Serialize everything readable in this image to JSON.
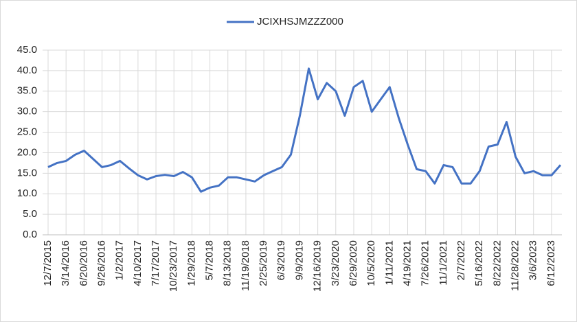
{
  "chart_data": {
    "type": "line",
    "categories": [
      "12/7/2015",
      null,
      "3/14/2016",
      null,
      "6/20/2016",
      null,
      "9/26/2016",
      null,
      "1/2/2017",
      null,
      "4/10/2017",
      null,
      "7/17/2017",
      null,
      "10/23/2017",
      null,
      "1/29/2018",
      null,
      "5/7/2018",
      null,
      "8/13/2018",
      null,
      "11/19/2018",
      null,
      "2/25/2019",
      null,
      "6/3/2019",
      null,
      "9/9/2019",
      null,
      "12/16/2019",
      null,
      "3/23/2020",
      null,
      "6/29/2020",
      null,
      "10/5/2020",
      null,
      "1/11/2021",
      null,
      "4/19/2021",
      null,
      "7/26/2021",
      null,
      "11/1/2021",
      null,
      "2/7/2022",
      null,
      "5/16/2022",
      null,
      "8/22/2022",
      null,
      "11/28/2022",
      null,
      "3/6/2023",
      null,
      "6/12/2023",
      null
    ],
    "series": [
      {
        "name": "JCIXHSJMZZZ000",
        "color": "#4472c4",
        "values": [
          16.5,
          17.5,
          18.0,
          19.5,
          20.5,
          18.5,
          16.5,
          17.0,
          18.0,
          16.2,
          14.5,
          13.5,
          14.3,
          14.6,
          14.3,
          15.3,
          14.0,
          10.5,
          11.5,
          12.0,
          14.0,
          14.0,
          13.5,
          13.0,
          14.5,
          15.5,
          16.5,
          19.5,
          29.0,
          40.5,
          33.0,
          37.0,
          35.0,
          29.0,
          36.0,
          37.5,
          30.0,
          33.0,
          36.0,
          28.5,
          22.0,
          16.0,
          15.5,
          12.5,
          17.0,
          16.5,
          12.5,
          12.5,
          15.5,
          21.5,
          22.0,
          27.5,
          19.0,
          15.0,
          15.5,
          14.5,
          14.5,
          17.0
        ]
      }
    ],
    "ylim": [
      0,
      45
    ],
    "yticks": [
      {
        "value": 0,
        "label": "0.0"
      },
      {
        "value": 5,
        "label": "5.0"
      },
      {
        "value": 10,
        "label": "10.0"
      },
      {
        "value": 15,
        "label": "15.0"
      },
      {
        "value": 20,
        "label": "20.0"
      },
      {
        "value": 25,
        "label": "25.0"
      },
      {
        "value": 30,
        "label": "30.0"
      },
      {
        "value": 35,
        "label": "35.0"
      },
      {
        "value": 40,
        "label": "40.0"
      },
      {
        "value": 45,
        "label": "45.0"
      }
    ],
    "grid": true,
    "legend": "top"
  }
}
